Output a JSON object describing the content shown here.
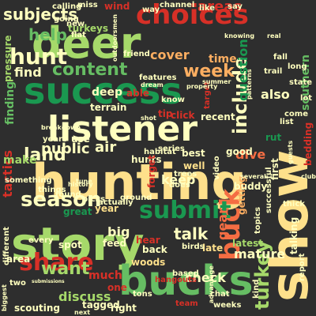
{
  "background": "#2e2e2e",
  "palette": {
    "green_light": "#a6d96a",
    "green_mid": "#66bd63",
    "green_dark": "#1a9850",
    "yellow": "#fee08b",
    "cream": "#ffffbf",
    "orange": "#fdae61",
    "red_orange": "#f46d43",
    "red": "#d73027",
    "dark_red": "#a50026",
    "dark_green": "#006837"
  },
  "words": [
    {
      "text": "hunting",
      "color": "#fee08b"
    },
    {
      "text": "story",
      "color": "#a6d96a"
    },
    {
      "text": "deer",
      "color": "#a6d96a"
    },
    {
      "text": "show",
      "color": "#fee08b"
    },
    {
      "text": "success",
      "color": "#1a9850"
    },
    {
      "text": "listener",
      "color": "#ffffbf"
    },
    {
      "text": "bucks",
      "color": "#66bd63"
    },
    {
      "text": "choices",
      "color": "#d73027"
    },
    {
      "text": "buck",
      "color": "#f46d43"
    },
    {
      "text": "submit",
      "color": "#1a9850"
    },
    {
      "text": "share",
      "color": "#d73027"
    },
    {
      "text": "season",
      "color": "#ffffbf"
    },
    {
      "text": "hunt",
      "color": "#ffffbf"
    },
    {
      "text": "want",
      "color": "#a6d96a"
    },
    {
      "text": "subjects",
      "color": "#ffffbf"
    },
    {
      "text": "content",
      "color": "#66bd63"
    },
    {
      "text": "week",
      "color": "#fdae61"
    },
    {
      "text": "talk",
      "color": "#ffffbf"
    },
    {
      "text": "turkey",
      "color": "#a6d96a"
    },
    {
      "text": "include",
      "color": "#ffffbf"
    },
    {
      "text": "land",
      "color": "#ffffbf"
    },
    {
      "text": "help",
      "color": "#66bd63"
    },
    {
      "text": "areas",
      "color": "#d73027"
    },
    {
      "text": "big",
      "color": "#ffffbf"
    },
    {
      "text": "check",
      "color": "#ffffbf"
    },
    {
      "text": "discuss",
      "color": "#a6d96a"
    },
    {
      "text": "mature",
      "color": "#ffffbf"
    },
    {
      "text": "also",
      "color": "#ffffbf"
    },
    {
      "text": "public",
      "color": "#ffffbf"
    },
    {
      "text": "air",
      "color": "#ffffbf"
    },
    {
      "text": "keep",
      "color": "#ffffbf"
    },
    {
      "text": "cover",
      "color": "#fdae61"
    },
    {
      "text": "dive",
      "color": "#f46d43"
    },
    {
      "text": "tactics",
      "color": "#d73027"
    },
    {
      "text": "question",
      "color": "#1a9850"
    },
    {
      "text": "gear",
      "color": "#f46d43"
    },
    {
      "text": "find",
      "color": "#ffffbf"
    },
    {
      "text": "much",
      "color": "#d73027"
    },
    {
      "text": "time",
      "color": "#fdae61"
    },
    {
      "text": "pressure",
      "color": "#a6d96a"
    },
    {
      "text": "finding",
      "color": "#66bd63"
    },
    {
      "text": "make",
      "color": "#a6d96a"
    },
    {
      "text": "year",
      "color": "#fee08b"
    },
    {
      "text": "rut",
      "color": "#1a9850"
    },
    {
      "text": "southern",
      "color": "#66bd63"
    },
    {
      "text": "latest",
      "color": "#a6d96a"
    },
    {
      "text": "late",
      "color": "#fee08b"
    },
    {
      "text": "getting",
      "color": "#fdae61"
    },
    {
      "text": "feed",
      "color": "#ffffbf"
    },
    {
      "text": "one",
      "color": "#d73027"
    },
    {
      "text": "tagged",
      "color": "#ffffbf"
    },
    {
      "text": "woods",
      "color": "#fee08b"
    },
    {
      "text": "back",
      "color": "#ffffbf"
    },
    {
      "text": "deep",
      "color": "#ffffbf"
    },
    {
      "text": "hunts",
      "color": "#ffffbf"
    },
    {
      "text": "well",
      "color": "#fee08b"
    },
    {
      "text": "good",
      "color": "#ffffbf"
    },
    {
      "text": "recent",
      "color": "#ffffbf"
    },
    {
      "text": "click",
      "color": "#d73027"
    },
    {
      "text": "tip",
      "color": "#d73027"
    },
    {
      "text": "video",
      "color": "#ffffbf"
    },
    {
      "text": "trail",
      "color": "#ffffbf"
    },
    {
      "text": "channel",
      "color": "#ffffbf"
    },
    {
      "text": "like",
      "color": "#ffffbf"
    },
    {
      "text": "way",
      "color": "#ffffbf"
    },
    {
      "text": "miss",
      "color": "#ffffbf"
    },
    {
      "text": "wind",
      "color": "#d73027"
    },
    {
      "text": "new",
      "color": "#ffffbf"
    },
    {
      "text": "turkeys",
      "color": "#a6d96a"
    },
    {
      "text": "friend",
      "color": "#ffffbf"
    },
    {
      "text": "fall",
      "color": "#ffffbf"
    },
    {
      "text": "come",
      "color": "#ffffbf"
    },
    {
      "text": "list",
      "color": "#ffffbf"
    },
    {
      "text": "guests",
      "color": "#ffffbf"
    },
    {
      "text": "bedding",
      "color": "#d73027"
    },
    {
      "text": "first",
      "color": "#ffffbf"
    },
    {
      "text": "buddy",
      "color": "#ffffbf"
    },
    {
      "text": "habitat",
      "color": "#ffffbf"
    },
    {
      "text": "series",
      "color": "#ffffbf"
    },
    {
      "text": "best",
      "color": "#ffffbf"
    },
    {
      "text": "forget",
      "color": "#d73027"
    },
    {
      "text": "terrain",
      "color": "#ffffbf"
    },
    {
      "text": "features",
      "color": "#ffffbf"
    },
    {
      "text": "know",
      "color": "#ffffbf"
    },
    {
      "text": "able",
      "color": "#d73027"
    },
    {
      "text": "target",
      "color": "#d73027"
    },
    {
      "text": "great",
      "color": "#1a9850"
    },
    {
      "text": "trees",
      "color": "#ffffbf"
    },
    {
      "text": "does",
      "color": "#ffffbf"
    },
    {
      "text": "years",
      "color": "#ffffbf"
    },
    {
      "text": "use",
      "color": "#ffffbf"
    },
    {
      "text": "things",
      "color": "#ffffbf"
    },
    {
      "text": "found",
      "color": "#ffffbf"
    },
    {
      "text": "picks",
      "color": "#ffffbf"
    },
    {
      "text": "actually",
      "color": "#ffffbf"
    },
    {
      "text": "ground",
      "color": "#ffffbf"
    },
    {
      "text": "spot",
      "color": "#ffffbf"
    },
    {
      "text": "every",
      "color": "#ffffbf"
    },
    {
      "text": "area",
      "color": "#ffffbf"
    },
    {
      "text": "hear",
      "color": "#d73027"
    },
    {
      "text": "different",
      "color": "#ffffbf"
    },
    {
      "text": "scouting",
      "color": "#ffffbf"
    },
    {
      "text": "right",
      "color": "#ffffbf"
    },
    {
      "text": "team",
      "color": "#d73027"
    },
    {
      "text": "hangouts",
      "color": "#d73027"
    },
    {
      "text": "based",
      "color": "#ffffbf"
    },
    {
      "text": "chat",
      "color": "#ffffbf"
    },
    {
      "text": "weeks",
      "color": "#ffffbf"
    },
    {
      "text": "kind",
      "color": "#ffffbf"
    },
    {
      "text": "talking",
      "color": "#ffffbf"
    },
    {
      "text": "topics",
      "color": "#ffffbf"
    },
    {
      "text": "successful",
      "color": "#ffffbf"
    },
    {
      "text": "thick",
      "color": "#ffffbf"
    },
    {
      "text": "state",
      "color": "#ffffbf"
    },
    {
      "text": "patterns",
      "color": "#ffffbf"
    },
    {
      "text": "lot",
      "color": "#ffffbf"
    },
    {
      "text": "long",
      "color": "#ffffbf"
    },
    {
      "text": "outdoorsmen",
      "color": "#ffffbf"
    },
    {
      "text": "calling",
      "color": "#ffffbf"
    },
    {
      "text": "going",
      "color": "#ffffbf"
    },
    {
      "text": "flat",
      "color": "#ffffbf"
    },
    {
      "text": "birds",
      "color": "#ffffbf"
    },
    {
      "text": "tons",
      "color": "#ffffbf"
    },
    {
      "text": "say",
      "color": "#ffffbf"
    },
    {
      "text": "something",
      "color": "#ffffbf"
    },
    {
      "text": "breakdown",
      "color": "#ffffbf"
    },
    {
      "text": "two",
      "color": "#ffffbf"
    },
    {
      "text": "submissions",
      "color": "#ffffbf"
    },
    {
      "text": "report",
      "color": "#ffffbf"
    },
    {
      "text": "club",
      "color": "#ffffbf"
    },
    {
      "text": "knowing",
      "color": "#ffffbf"
    },
    {
      "text": "real",
      "color": "#ffffbf"
    },
    {
      "text": "property",
      "color": "#ffffbf"
    },
    {
      "text": "summer",
      "color": "#ffffbf"
    },
    {
      "text": "dream",
      "color": "#ffffbf"
    },
    {
      "text": "shot",
      "color": "#ffffbf"
    },
    {
      "text": "history",
      "color": "#ffffbf"
    },
    {
      "text": "tune",
      "color": "#ffffbf"
    },
    {
      "text": "several",
      "color": "#ffffbf"
    },
    {
      "text": "advantage",
      "color": "#ffffbf"
    },
    {
      "text": "biggest",
      "color": "#ffffbf"
    },
    {
      "text": "next",
      "color": "#ffffbf"
    }
  ]
}
